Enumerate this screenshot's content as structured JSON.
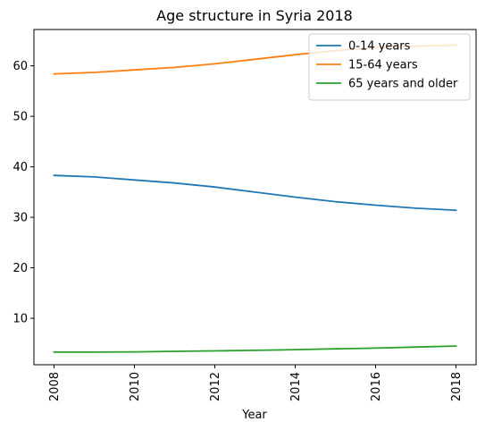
{
  "chart_data": {
    "type": "line",
    "title": "Age structure in Syria 2018",
    "xlabel": "Year",
    "ylabel": "",
    "x": [
      2008,
      2009,
      2010,
      2011,
      2012,
      2013,
      2014,
      2015,
      2016,
      2017,
      2018
    ],
    "xticks": [
      "2008",
      "2010",
      "2012",
      "2014",
      "2016",
      "2018"
    ],
    "yticks": [
      "10",
      "20",
      "30",
      "40",
      "50",
      "60"
    ],
    "xlim": [
      2007.5,
      2018.5
    ],
    "ylim": [
      0.8,
      67.2
    ],
    "grid": false,
    "legend_position": "top-right",
    "series": [
      {
        "name": "0-14 years",
        "color": "#1f77b4",
        "values": [
          38.3,
          38.0,
          37.4,
          36.8,
          36.0,
          35.0,
          34.0,
          33.1,
          32.4,
          31.8,
          31.4
        ]
      },
      {
        "name": "15-64 years",
        "color": "#ff7f0e",
        "values": [
          58.4,
          58.7,
          59.2,
          59.7,
          60.4,
          61.3,
          62.2,
          63.0,
          63.6,
          63.9,
          64.1
        ]
      },
      {
        "name": "65 years and older",
        "color": "#2ca02c",
        "values": [
          3.3,
          3.3,
          3.35,
          3.45,
          3.55,
          3.65,
          3.8,
          3.95,
          4.1,
          4.3,
          4.5
        ]
      }
    ]
  }
}
